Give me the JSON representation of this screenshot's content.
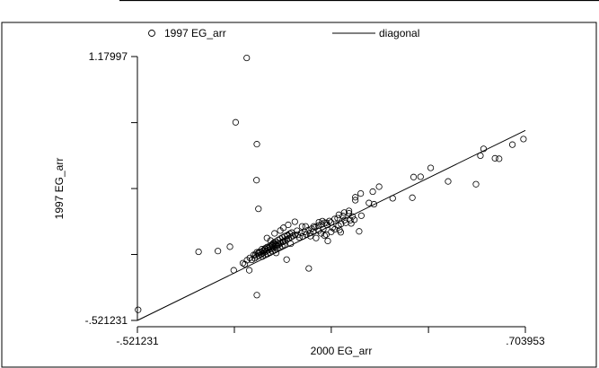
{
  "chart_data": {
    "type": "scatter",
    "xlabel": "2000 EG_arr",
    "ylabel": "1997 EG_arr",
    "xlim": [
      -0.521231,
      0.703953
    ],
    "ylim": [
      -0.521231,
      1.17997
    ],
    "x_tick_labels": [
      {
        "value": -0.521231,
        "label": "-.521231"
      },
      {
        "value": 0.703953,
        "label": ".703953"
      }
    ],
    "x_ticks_unlabeled": [
      -0.215,
      0.091,
      0.398
    ],
    "y_tick_labels": [
      {
        "value": -0.521231,
        "label": "-.521231"
      },
      {
        "value": 1.17997,
        "label": "1.17997"
      }
    ],
    "y_ticks_unlabeled": [
      -0.096,
      0.329,
      0.754
    ],
    "legend": {
      "placement": "top",
      "entries": [
        {
          "label": "1997 EG_arr",
          "symbol": "circle"
        },
        {
          "label": "diagonal",
          "symbol": "line"
        }
      ]
    },
    "series": [
      {
        "name": "1997 EG_arr",
        "kind": "scatter",
        "points": [
          [
            -0.519,
            -0.453
          ],
          [
            -0.328,
            -0.079
          ],
          [
            -0.211,
            0.756
          ],
          [
            -0.176,
            1.171
          ],
          [
            -0.144,
            0.615
          ],
          [
            -0.145,
            0.383
          ],
          [
            -0.139,
            0.198
          ],
          [
            -0.168,
            -0.198
          ],
          [
            -0.144,
            -0.358
          ],
          [
            -0.267,
            -0.074
          ],
          [
            -0.229,
            -0.046
          ],
          [
            -0.217,
            -0.198
          ],
          [
            -0.188,
            -0.152
          ],
          [
            -0.175,
            -0.133
          ],
          [
            -0.166,
            -0.118
          ],
          [
            -0.144,
            -0.082
          ],
          [
            -0.154,
            -0.099
          ],
          [
            -0.12,
            -0.071
          ],
          [
            -0.101,
            -0.006
          ],
          [
            -0.09,
            -0.025
          ],
          [
            -0.083,
            -0.086
          ],
          [
            -0.079,
            -0.04
          ],
          [
            -0.06,
            -0.013
          ],
          [
            -0.048,
            0.025
          ],
          [
            -0.037,
            -0.027
          ],
          [
            -0.024,
            0.115
          ],
          [
            -0.017,
            0.057
          ],
          [
            -0.001,
            0.085
          ],
          [
            0.01,
            0.085
          ],
          [
            0.025,
            0.022
          ],
          [
            0.036,
            0.085
          ],
          [
            0.051,
            0.057
          ],
          [
            0.059,
            0.04
          ],
          [
            0.063,
            0.119
          ],
          [
            0.076,
            0.108
          ],
          [
            0.02,
            -0.186
          ],
          [
            0.08,
            -0.009
          ],
          [
            0.075,
            0.032
          ],
          [
            0.111,
            0.138
          ],
          [
            0.167,
            0.273
          ],
          [
            0.184,
            0.297
          ],
          [
            0.222,
            0.309
          ],
          [
            0.167,
            0.254
          ],
          [
            0.147,
            0.17
          ],
          [
            0.128,
            0.152
          ],
          [
            0.285,
            0.266
          ],
          [
            0.226,
            0.228
          ],
          [
            0.21,
            0.236
          ],
          [
            0.242,
            0.341
          ],
          [
            0.351,
            0.403
          ],
          [
            0.373,
            0.405
          ],
          [
            0.405,
            0.462
          ],
          [
            0.347,
            0.27
          ],
          [
            0.46,
            0.375
          ],
          [
            0.562,
            0.541
          ],
          [
            0.572,
            0.585
          ],
          [
            0.663,
            0.612
          ],
          [
            0.698,
            0.648
          ],
          [
            0.621,
            0.521
          ],
          [
            0.608,
            0.524
          ],
          [
            0.548,
            0.357
          ],
          [
            0.179,
            0.053
          ],
          [
            -0.05,
            -0.129
          ],
          [
            0.091,
            0.05
          ],
          [
            0.102,
            0.066
          ],
          [
            0.114,
            0.09
          ],
          [
            0.122,
            0.101
          ],
          [
            0.137,
            0.108
          ],
          [
            0.151,
            0.125
          ],
          [
            0.158,
            0.149
          ],
          [
            0.07,
            0.025
          ],
          [
            0.043,
            0.01
          ],
          [
            0.066,
            0.068
          ],
          [
            0.09,
            0.11
          ],
          [
            0.121,
            0.047
          ],
          [
            0.117,
            0.062
          ],
          [
            0.133,
            0.126
          ],
          [
            0.132,
            0.174
          ],
          [
            0.147,
            0.185
          ],
          [
            0.154,
            0.104
          ],
          [
            0.164,
            0.128
          ],
          [
            0.186,
            0.154
          ],
          [
            -0.182,
            -0.159
          ],
          [
            -0.16,
            -0.131
          ],
          [
            -0.151,
            -0.121
          ],
          [
            -0.144,
            -0.111
          ],
          [
            -0.138,
            -0.104
          ],
          [
            -0.131,
            -0.096
          ],
          [
            -0.126,
            -0.09
          ],
          [
            -0.12,
            -0.082
          ],
          [
            -0.114,
            -0.075
          ],
          [
            -0.108,
            -0.068
          ],
          [
            -0.101,
            -0.06
          ],
          [
            -0.095,
            -0.052
          ],
          [
            -0.088,
            -0.045
          ],
          [
            -0.082,
            -0.037
          ],
          [
            -0.075,
            -0.03
          ],
          [
            -0.069,
            -0.022
          ],
          [
            -0.062,
            -0.014
          ],
          [
            -0.055,
            -0.007
          ],
          [
            -0.049,
            0.001
          ],
          [
            -0.043,
            0.008
          ],
          [
            -0.036,
            0.016
          ],
          [
            -0.03,
            0.023
          ],
          [
            -0.023,
            0.031
          ],
          [
            -0.137,
            -0.08
          ],
          [
            -0.128,
            -0.062
          ],
          [
            -0.118,
            -0.057
          ],
          [
            -0.112,
            -0.049
          ],
          [
            -0.104,
            -0.041
          ],
          [
            -0.096,
            -0.031
          ],
          [
            -0.091,
            -0.021
          ],
          [
            -0.085,
            -0.013
          ],
          [
            -0.077,
            -0.003
          ],
          [
            -0.07,
            0.006
          ],
          [
            -0.063,
            0.013
          ],
          [
            -0.056,
            0.022
          ],
          [
            -0.047,
            0.029
          ],
          [
            -0.04,
            0.038
          ],
          [
            -0.034,
            0.045
          ],
          [
            -0.126,
            -0.109
          ],
          [
            -0.118,
            -0.1
          ],
          [
            -0.11,
            -0.093
          ],
          [
            -0.102,
            -0.084
          ],
          [
            -0.094,
            -0.075
          ],
          [
            -0.087,
            -0.068
          ],
          [
            -0.079,
            -0.059
          ],
          [
            -0.071,
            -0.051
          ],
          [
            -0.064,
            -0.042
          ],
          [
            -0.057,
            -0.035
          ],
          [
            -0.148,
            -0.098
          ],
          [
            -0.14,
            -0.088
          ],
          [
            -0.133,
            -0.081
          ],
          [
            -0.125,
            -0.072
          ],
          [
            -0.117,
            -0.063
          ],
          [
            -0.109,
            -0.056
          ],
          [
            -0.102,
            -0.047
          ],
          [
            -0.094,
            -0.039
          ],
          [
            -0.086,
            -0.031
          ],
          [
            -0.078,
            -0.023
          ],
          [
            -0.015,
            0.03
          ],
          [
            -0.004,
            0.043
          ],
          [
            0.007,
            0.049
          ],
          [
            0.018,
            0.061
          ],
          [
            0.029,
            0.07
          ],
          [
            0.04,
            0.079
          ],
          [
            0.05,
            0.09
          ],
          [
            0.06,
            0.097
          ],
          [
            0.07,
            0.109
          ],
          [
            0.085,
            0.12
          ],
          [
            -0.01,
            0.013
          ],
          [
            0.001,
            0.02
          ],
          [
            0.012,
            0.033
          ],
          [
            0.024,
            0.042
          ],
          [
            0.035,
            0.051
          ],
          [
            -0.07,
            0.058
          ],
          [
            -0.06,
            0.076
          ],
          [
            -0.045,
            0.095
          ],
          [
            -0.088,
            0.04
          ],
          [
            -0.112,
            0.01
          ],
          [
            0.102,
            0.133
          ],
          [
            0.115,
            0.16
          ],
          [
            0.095,
            0.076
          ],
          [
            0.078,
            0.094
          ],
          [
            0.052,
            0.112
          ]
        ]
      },
      {
        "name": "diagonal",
        "kind": "line",
        "points": [
          [
            -0.521231,
            -0.521231
          ],
          [
            0.703953,
            0.703953
          ]
        ]
      }
    ]
  }
}
